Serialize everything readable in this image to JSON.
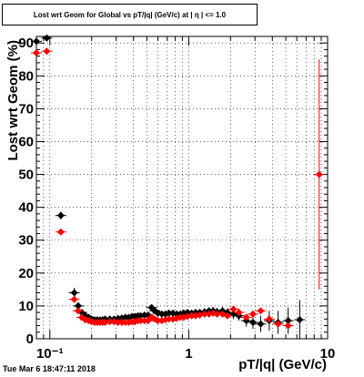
{
  "title": "Lost wrt Geom for Global vs pT/|q| (GeV/c) at | η | <= 1.0",
  "footer": "Tue Mar  6 18:47:11 2018",
  "chart_data": {
    "type": "scatter",
    "xlabel": "pT/|q| (GeV/c)",
    "ylabel": "Lost wrt Geom (%)",
    "xscale": "log",
    "xlim": [
      0.08,
      10
    ],
    "ylim": [
      0,
      92
    ],
    "grid": true,
    "x_tick_labels": [
      "10⁻¹",
      "1",
      "10"
    ],
    "x_ticks": [
      0.1,
      1,
      10
    ],
    "y_ticks": [
      0,
      10,
      20,
      30,
      40,
      50,
      60,
      70,
      80,
      90
    ],
    "series": [
      {
        "color": "#000000",
        "marker": "diamond",
        "x": [
          0.08,
          0.095,
          0.12,
          0.15,
          0.16,
          0.17,
          0.18,
          0.19,
          0.2,
          0.21,
          0.22,
          0.23,
          0.24,
          0.25,
          0.27,
          0.29,
          0.31,
          0.33,
          0.35,
          0.37,
          0.39,
          0.41,
          0.43,
          0.45,
          0.48,
          0.51,
          0.54,
          0.57,
          0.6,
          0.64,
          0.68,
          0.72,
          0.77,
          0.82,
          0.87,
          0.92,
          0.98,
          1.05,
          1.12,
          1.2,
          1.3,
          1.4,
          1.5,
          1.6,
          1.75,
          1.9,
          2.1,
          2.3,
          2.6,
          2.9,
          3.3,
          3.8,
          4.4,
          5.2,
          6.3
        ],
        "y": [
          90.5,
          91.5,
          37.5,
          14,
          10,
          8,
          7,
          6.5,
          6,
          5.8,
          5.8,
          5.7,
          5.8,
          6,
          6,
          6,
          6.2,
          6.3,
          6.5,
          6.5,
          6.8,
          6.8,
          7,
          7,
          7.2,
          7.2,
          9.5,
          8.5,
          7.8,
          7.5,
          7.5,
          7.8,
          7.8,
          7.5,
          7.5,
          7.8,
          8,
          7.8,
          8,
          8,
          8.2,
          8.5,
          8.5,
          8.2,
          8.5,
          8,
          7.5,
          7,
          5.5,
          5,
          4.5,
          5.5,
          5,
          5.5,
          5.8
        ],
        "yerr": [
          0.8,
          0.8,
          1.2,
          1.5,
          1.2,
          1,
          0.8,
          0.8,
          0.8,
          0.8,
          0.8,
          0.8,
          0.8,
          0.8,
          0.8,
          0.8,
          0.8,
          0.8,
          0.8,
          0.8,
          0.8,
          0.8,
          0.8,
          0.8,
          0.8,
          0.8,
          1,
          1,
          1,
          1,
          1,
          1,
          1,
          1,
          1,
          1,
          1,
          1,
          1,
          1,
          1,
          1,
          1.2,
          1.2,
          1.2,
          1.2,
          1.5,
          1.5,
          1.8,
          2,
          2.5,
          3,
          3.5,
          4,
          6
        ]
      },
      {
        "color": "#ff0000",
        "marker": "diamond",
        "x": [
          0.08,
          0.095,
          0.12,
          0.15,
          0.16,
          0.17,
          0.18,
          0.19,
          0.2,
          0.21,
          0.22,
          0.23,
          0.24,
          0.25,
          0.27,
          0.29,
          0.31,
          0.33,
          0.35,
          0.37,
          0.39,
          0.41,
          0.43,
          0.45,
          0.48,
          0.51,
          0.54,
          0.57,
          0.6,
          0.64,
          0.68,
          0.72,
          0.77,
          0.82,
          0.87,
          0.92,
          0.98,
          1.05,
          1.12,
          1.2,
          1.3,
          1.4,
          1.5,
          1.6,
          1.75,
          1.9,
          2.1,
          2.3,
          2.6,
          2.9,
          3.3,
          3.8,
          4.4,
          5.2,
          8.7
        ],
        "y": [
          87,
          87.5,
          32.5,
          12,
          8.5,
          6.5,
          5.8,
          5.5,
          5.2,
          5,
          5,
          5,
          5,
          5,
          5.2,
          5.2,
          5,
          5,
          5,
          5,
          5.2,
          5.2,
          5.5,
          5.5,
          5.5,
          5.5,
          6.5,
          6,
          5.5,
          5.5,
          5.8,
          6,
          6,
          6.2,
          6.5,
          6.5,
          6.8,
          7,
          7,
          7.2,
          7.5,
          7.5,
          7.8,
          7.5,
          7.5,
          7,
          9,
          8,
          6.5,
          7.5,
          8.5,
          6,
          4.5,
          4,
          50
        ]
      }
    ]
  }
}
